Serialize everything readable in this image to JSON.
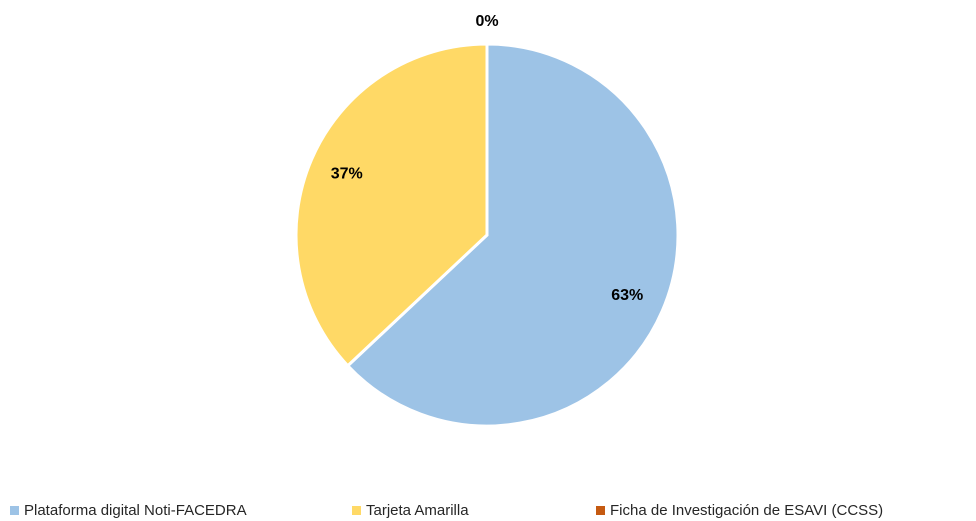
{
  "chart_data": {
    "type": "pie",
    "categories": [
      "Plataforma digital Noti-FACEDRA",
      "Tarjeta Amarilla",
      "Ficha de Investigación de ESAVI (CCSS)"
    ],
    "values": [
      63,
      37,
      0
    ],
    "value_labels": [
      "63%",
      "37%",
      "0%"
    ],
    "colors": [
      "#9dc3e6",
      "#ffd966",
      "#c55a11"
    ]
  }
}
